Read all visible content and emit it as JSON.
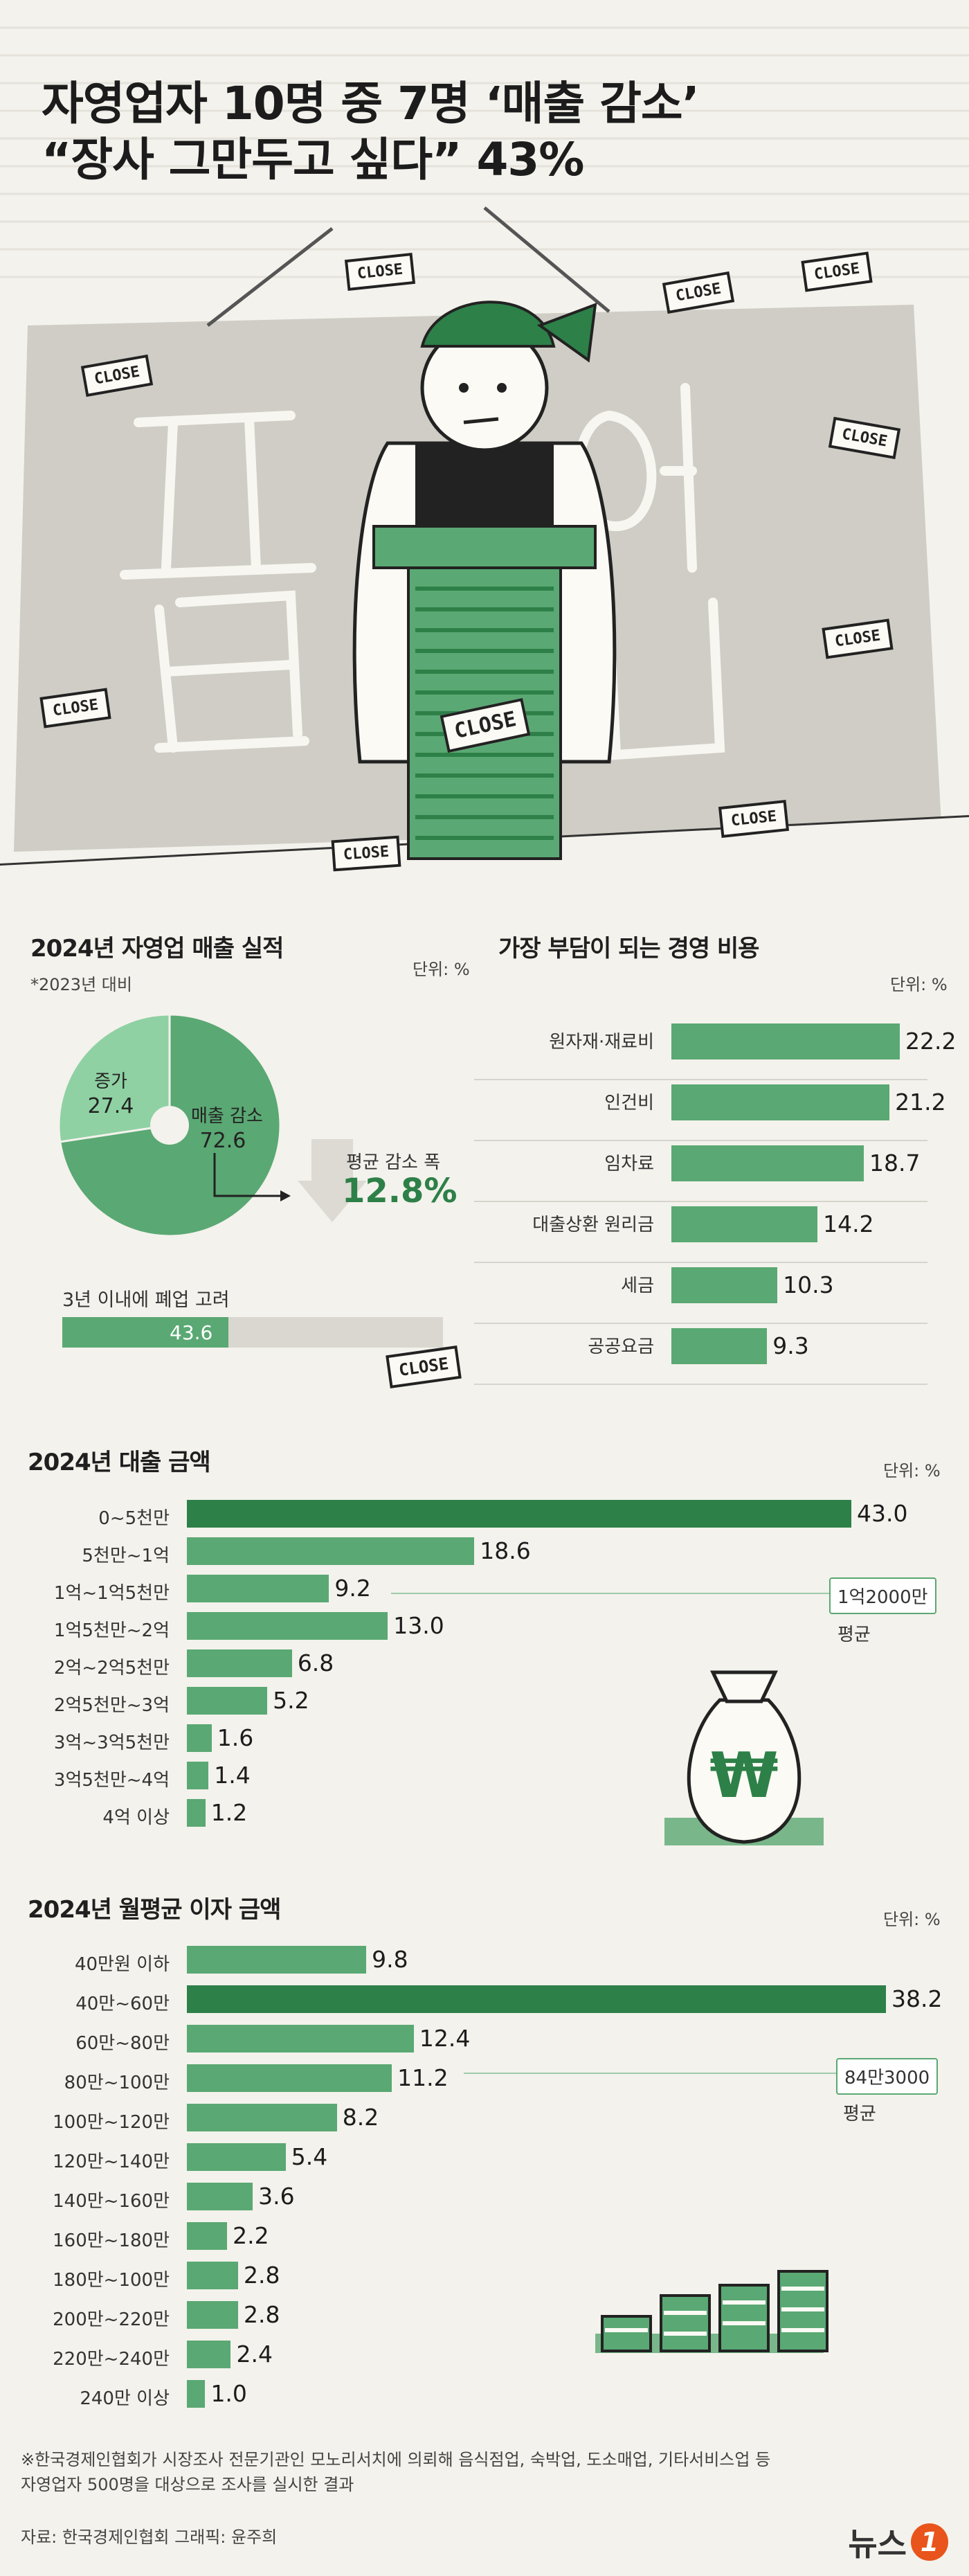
{
  "header": {
    "title_line1": "자영업자 10명 중 7명 ‘매출 감소’",
    "title_line2": "“장사 그만두고 싶다” 43%",
    "sign_text": "CLOSE",
    "illustration_text": "폐업"
  },
  "colors": {
    "light_green": "#8fd1a3",
    "mid_green": "#5aa873",
    "dark_green": "#2d8048",
    "background": "#f3f2ec",
    "board": "#cfcdc5"
  },
  "sales_performance": {
    "title": "2024년 자영업 매출 실적",
    "subtitle": "*2023년 대비",
    "unit": "단위: %",
    "increase_label": "증가",
    "decrease_label": "매출 감소",
    "avg_drop_label": "평균 감소 폭",
    "avg_drop_value": "12.8%",
    "closure_label": "3년 이내에 폐업 고려",
    "closure_value_text": "43.6"
  },
  "cost_burden": {
    "title": "가장 부담이 되는 경영 비용",
    "unit": "단위: %"
  },
  "revenue_amount": {
    "title": "2024년 대출 금액",
    "unit": "단위: %",
    "avg_value": "1억2000만",
    "avg_label": "평균"
  },
  "interest_amount": {
    "title": "2024년 월평균 이자 금액",
    "unit": "단위: %",
    "avg_value": "84만3000",
    "avg_label": "평균"
  },
  "chart_data": [
    {
      "type": "pie",
      "title": "2024년 자영업 매출 실적",
      "categories": [
        "증가",
        "매출 감소"
      ],
      "values": [
        27.4,
        72.6
      ],
      "value_labels": [
        "27.4",
        "72.6"
      ]
    },
    {
      "type": "bar",
      "title": "3년 이내에 폐업 고려",
      "categories": [
        "3년 이내에 폐업 고려"
      ],
      "values": [
        43.6
      ]
    },
    {
      "type": "bar",
      "title": "가장 부담이 되는 경영 비용",
      "categories": [
        "원자재·재료비",
        "인건비",
        "임차료",
        "대출상환 원리금",
        "세금",
        "공공요금"
      ],
      "values": [
        22.2,
        21.2,
        18.7,
        14.2,
        10.3,
        9.3
      ],
      "value_labels": [
        "22.2",
        "21.2",
        "18.7",
        "14.2",
        "10.3",
        "9.3"
      ]
    },
    {
      "type": "bar",
      "title": "2024년 대출 금액",
      "categories": [
        "0~5천만",
        "5천만~1억",
        "1억~1억5천만",
        "1억5천만~2억",
        "2억~2억5천만",
        "2억5천만~3억",
        "3억~3억5천만",
        "3억5천만~4억",
        "4억 이상"
      ],
      "values": [
        43.0,
        18.6,
        9.2,
        13.0,
        6.8,
        5.2,
        1.6,
        1.4,
        1.2
      ],
      "value_labels": [
        "43.0",
        "18.6",
        "9.2",
        "13.0",
        "6.8",
        "5.2",
        "1.6",
        "1.4",
        "1.2"
      ]
    },
    {
      "type": "bar",
      "title": "2024년 월평균 이자 금액",
      "categories": [
        "40만원 이하",
        "40만~60만",
        "60만~80만",
        "80만~100만",
        "100만~120만",
        "120만~140만",
        "140만~160만",
        "160만~180만",
        "180만~100만",
        "200만~220만",
        "220만~240만",
        "240만 이상"
      ],
      "values": [
        9.8,
        38.2,
        12.4,
        11.2,
        8.2,
        5.4,
        3.6,
        2.2,
        2.8,
        2.8,
        2.4,
        1.0
      ],
      "value_labels": [
        "9.8",
        "38.2",
        "12.4",
        "11.2",
        "8.2",
        "5.4",
        "3.6",
        "2.2",
        "2.8",
        "2.8",
        "2.4",
        "1.0"
      ]
    }
  ],
  "footer": {
    "note_line1": "※한국경제인협회가 시장조사 전문기관인 모노리서치에 의뢰해 음식점업, 숙박업, 도소매업, 기타서비스업 등",
    "note_line2": "자영업자 500명을 대상으로 조사를 실시한 결과",
    "source": "자료: 한국경제인협회  그래픽: 윤주희",
    "logo_text": "뉴스",
    "logo_badge": "1"
  }
}
